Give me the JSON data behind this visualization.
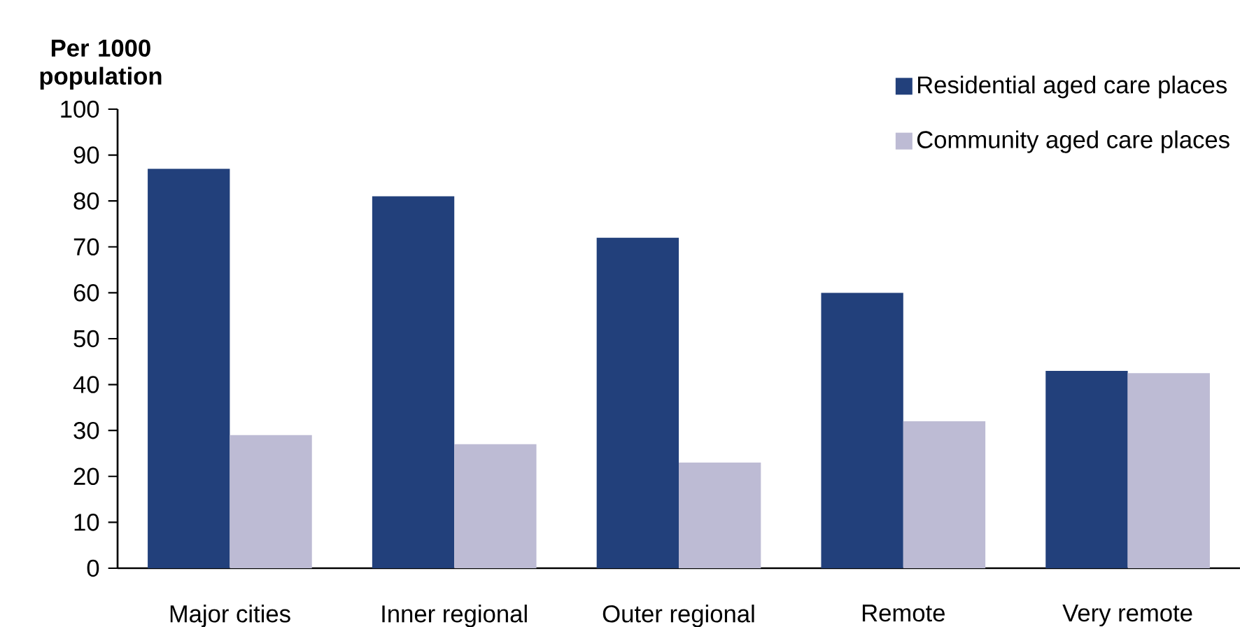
{
  "chart_data": {
    "type": "bar",
    "ylabel": "Per 1000 population",
    "categories": [
      "Major cities",
      "Inner regional",
      "Outer regional",
      "Remote",
      "Very remote"
    ],
    "series": [
      {
        "name": "Residential aged care places",
        "color": "#22407b",
        "values": [
          87,
          81,
          72,
          60,
          43
        ]
      },
      {
        "name": "Community aged care places",
        "color": "#bdbbd4",
        "values": [
          29,
          27,
          23,
          32,
          42.5
        ]
      }
    ],
    "ylim": [
      0,
      100
    ],
    "yticks": [
      0,
      10,
      20,
      30,
      40,
      50,
      60,
      70,
      80,
      90,
      100
    ],
    "legend": "top right"
  }
}
